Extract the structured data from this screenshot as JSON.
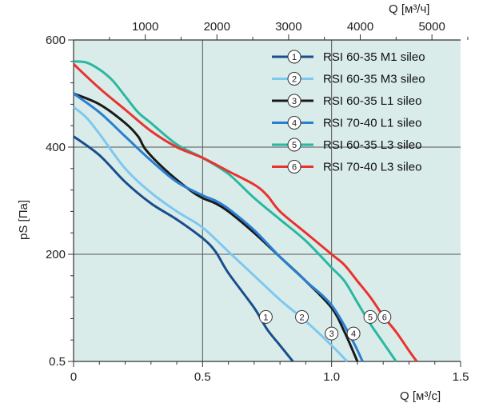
{
  "chart_data": {
    "type": "line",
    "xlabel_bottom": "Q [м³/с]",
    "xlabel_top": "Q [м³/ч]",
    "ylabel": "pS [Па]",
    "xlim": [
      0,
      1.5
    ],
    "ylim_labels": [
      "0.5",
      "200",
      "400",
      "600"
    ],
    "x_ticks_bottom": [
      "0",
      "0.5",
      "1.0",
      "1.5"
    ],
    "x_ticks_top": [
      "1000",
      "2000",
      "3000",
      "4000",
      "5000"
    ],
    "y_ticks": [
      "0.5",
      "200",
      "400",
      "600"
    ],
    "grid": true,
    "background": "#d9ecea",
    "legend_position": "top-right",
    "series": [
      {
        "id": "1",
        "name": "RSI 60-35 M1 sileo",
        "color": "#1a4e8c",
        "points": [
          [
            0,
            420
          ],
          [
            0.1,
            385
          ],
          [
            0.2,
            335
          ],
          [
            0.3,
            295
          ],
          [
            0.4,
            265
          ],
          [
            0.5,
            230
          ],
          [
            0.55,
            205
          ],
          [
            0.6,
            165
          ],
          [
            0.7,
            100
          ],
          [
            0.75,
            60
          ],
          [
            0.8,
            30
          ],
          [
            0.85,
            0
          ]
        ]
      },
      {
        "id": "2",
        "name": "RSI 60-35 M3 sileo",
        "color": "#7ec8f0",
        "points": [
          [
            0,
            475
          ],
          [
            0.05,
            455
          ],
          [
            0.1,
            425
          ],
          [
            0.2,
            360
          ],
          [
            0.3,
            315
          ],
          [
            0.4,
            280
          ],
          [
            0.5,
            250
          ],
          [
            0.6,
            205
          ],
          [
            0.7,
            160
          ],
          [
            0.8,
            115
          ],
          [
            0.9,
            75
          ],
          [
            1.0,
            30
          ],
          [
            1.06,
            0
          ]
        ]
      },
      {
        "id": "3",
        "name": "RSI 60-35 L1 sileo",
        "color": "#1a1a1a",
        "points": [
          [
            0,
            500
          ],
          [
            0.1,
            480
          ],
          [
            0.2,
            445
          ],
          [
            0.25,
            420
          ],
          [
            0.28,
            395
          ],
          [
            0.35,
            360
          ],
          [
            0.45,
            320
          ],
          [
            0.5,
            305
          ],
          [
            0.55,
            295
          ],
          [
            0.6,
            280
          ],
          [
            0.7,
            240
          ],
          [
            0.8,
            195
          ],
          [
            0.9,
            150
          ],
          [
            1.0,
            100
          ],
          [
            1.05,
            55
          ],
          [
            1.1,
            0
          ]
        ]
      },
      {
        "id": "4",
        "name": "RSI 70-40 L1 sileo",
        "color": "#2a7fd0",
        "points": [
          [
            0,
            500
          ],
          [
            0.1,
            465
          ],
          [
            0.2,
            420
          ],
          [
            0.3,
            375
          ],
          [
            0.4,
            335
          ],
          [
            0.5,
            310
          ],
          [
            0.55,
            300
          ],
          [
            0.6,
            285
          ],
          [
            0.7,
            245
          ],
          [
            0.8,
            195
          ],
          [
            0.9,
            150
          ],
          [
            1.0,
            105
          ],
          [
            1.08,
            40
          ],
          [
            1.12,
            0
          ]
        ]
      },
      {
        "id": "5",
        "name": "RSI 60-35 L3 sileo",
        "color": "#2ab8a0",
        "points": [
          [
            0,
            560
          ],
          [
            0.05,
            558
          ],
          [
            0.1,
            545
          ],
          [
            0.15,
            525
          ],
          [
            0.2,
            495
          ],
          [
            0.25,
            465
          ],
          [
            0.3,
            445
          ],
          [
            0.4,
            405
          ],
          [
            0.5,
            380
          ],
          [
            0.6,
            350
          ],
          [
            0.7,
            305
          ],
          [
            0.8,
            265
          ],
          [
            0.9,
            225
          ],
          [
            1.0,
            175
          ],
          [
            1.05,
            150
          ],
          [
            1.1,
            110
          ],
          [
            1.15,
            70
          ],
          [
            1.2,
            35
          ],
          [
            1.25,
            0
          ]
        ]
      },
      {
        "id": "6",
        "name": "RSI 70-40 L3 sileo",
        "color": "#e8342f",
        "points": [
          [
            0,
            555
          ],
          [
            0.1,
            510
          ],
          [
            0.2,
            470
          ],
          [
            0.3,
            430
          ],
          [
            0.4,
            400
          ],
          [
            0.5,
            380
          ],
          [
            0.6,
            355
          ],
          [
            0.7,
            330
          ],
          [
            0.75,
            310
          ],
          [
            0.8,
            280
          ],
          [
            0.9,
            240
          ],
          [
            1.0,
            200
          ],
          [
            1.05,
            180
          ],
          [
            1.1,
            150
          ],
          [
            1.15,
            120
          ],
          [
            1.2,
            85
          ],
          [
            1.25,
            55
          ],
          [
            1.3,
            20
          ],
          [
            1.33,
            0
          ]
        ]
      }
    ],
    "curve_labels": [
      {
        "id": "1",
        "x": 0.745,
        "y": 83
      },
      {
        "id": "2",
        "x": 0.885,
        "y": 83
      },
      {
        "id": "3",
        "x": 1.0,
        "y": 52
      },
      {
        "id": "4",
        "x": 1.085,
        "y": 52
      },
      {
        "id": "5",
        "x": 1.15,
        "y": 83
      },
      {
        "id": "6",
        "x": 1.205,
        "y": 83
      }
    ]
  }
}
